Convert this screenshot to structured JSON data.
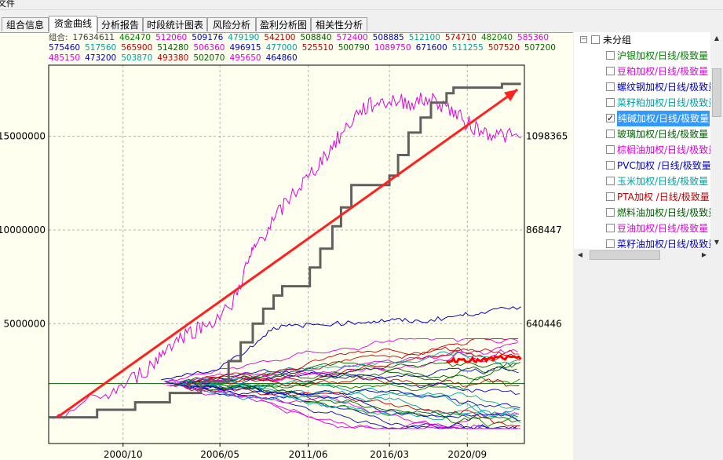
{
  "menu": {
    "file": "文件"
  },
  "tabs": [
    {
      "label": "组合信息",
      "active": false
    },
    {
      "label": "资金曲线",
      "active": true
    },
    {
      "label": "分析报告",
      "active": false
    },
    {
      "label": "时段统计图表",
      "active": false
    },
    {
      "label": "风险分析",
      "active": false
    },
    {
      "label": "盈利分析图",
      "active": false
    },
    {
      "label": "相关性分析",
      "active": false
    }
  ],
  "legend": {
    "lead_label": "组合:",
    "lead_value": "17634611",
    "rows": [
      [
        {
          "value": "462470",
          "color": "#008000"
        },
        {
          "value": "512060",
          "color": "#e000e0"
        },
        {
          "value": "509176",
          "color": "#0000c0"
        },
        {
          "value": "479190",
          "color": "#00a0a0"
        },
        {
          "value": "542100",
          "color": "#c00000"
        },
        {
          "value": "508840",
          "color": "#006000"
        },
        {
          "value": "572400",
          "color": "#e000e0"
        },
        {
          "value": "508885",
          "color": "#0000c0"
        },
        {
          "value": "512100",
          "color": "#00a0a0"
        },
        {
          "value": "574710",
          "color": "#c00000"
        },
        {
          "value": "482040",
          "color": "#008000"
        },
        {
          "value": "585360",
          "color": "#e000e0"
        }
      ],
      [
        {
          "value": "575460",
          "color": "#0000c0"
        },
        {
          "value": "517560",
          "color": "#00a0a0"
        },
        {
          "value": "565900",
          "color": "#c00000"
        },
        {
          "value": "514280",
          "color": "#006000"
        },
        {
          "value": "506360",
          "color": "#e000e0"
        },
        {
          "value": "496915",
          "color": "#0000c0"
        },
        {
          "value": "477000",
          "color": "#00a0a0"
        },
        {
          "value": "525510",
          "color": "#c00000"
        },
        {
          "value": "500790",
          "color": "#006000"
        },
        {
          "value": "1089750",
          "color": "#e000e0"
        },
        {
          "value": "671600",
          "color": "#0000c0"
        },
        {
          "value": "511255",
          "color": "#00a0a0"
        },
        {
          "value": "507520",
          "color": "#c00000"
        },
        {
          "value": "507200",
          "color": "#006000"
        }
      ],
      [
        {
          "value": "485150",
          "color": "#e000e0"
        },
        {
          "value": "473200",
          "color": "#0000c0"
        },
        {
          "value": "503870",
          "color": "#00a0a0"
        },
        {
          "value": "493380",
          "color": "#c00000"
        },
        {
          "value": "502070",
          "color": "#006000"
        },
        {
          "value": "495650",
          "color": "#e000e0"
        },
        {
          "value": "464860",
          "color": "#0000c0"
        }
      ]
    ]
  },
  "tree": {
    "group_label": "未分组",
    "group_expander": "−",
    "items": [
      {
        "label": "沪银加权/日线/极致量",
        "color": "#008000",
        "checked": false,
        "selected": false
      },
      {
        "label": "豆粕加权/日线/极致量",
        "color": "#e000e0",
        "checked": false,
        "selected": false
      },
      {
        "label": "螺纹钢加权/日线/极致量",
        "color": "#0000c0",
        "checked": false,
        "selected": false
      },
      {
        "label": "菜籽粕加权/日线/极致量",
        "color": "#00a0a0",
        "checked": false,
        "selected": false
      },
      {
        "label": "纯碱加权/日线/极致量",
        "color": "#c00000",
        "checked": true,
        "selected": true
      },
      {
        "label": "玻璃加权/日线/极致量",
        "color": "#006000",
        "checked": false,
        "selected": false
      },
      {
        "label": "棕榈油加权/日线/极致量",
        "color": "#e000e0",
        "checked": false,
        "selected": false
      },
      {
        "label": "PVC加权 /日线/极致量",
        "color": "#0000c0",
        "checked": false,
        "selected": false
      },
      {
        "label": "玉米加权/日线/极致量",
        "color": "#00a0a0",
        "checked": false,
        "selected": false
      },
      {
        "label": "PTA加权 /日线/极致量",
        "color": "#c00000",
        "checked": false,
        "selected": false
      },
      {
        "label": "燃料油加权/日线/极致量",
        "color": "#006000",
        "checked": false,
        "selected": false
      },
      {
        "label": "豆油加权/日线/极致量",
        "color": "#e000e0",
        "checked": false,
        "selected": false
      },
      {
        "label": "菜籽油加权/日线/极致量",
        "color": "#0000c0",
        "checked": false,
        "selected": false
      }
    ]
  },
  "chart_data": {
    "type": "line",
    "xlabel": "",
    "ylabel": "",
    "x_ticks": [
      "2000/10",
      "2006/05",
      "2011/06",
      "2016/03",
      "2020/09"
    ],
    "y_ticks_left": [
      {
        "label": "5000000",
        "value": 5000000
      },
      {
        "label": "10000000",
        "value": 10000000
      },
      {
        "label": "15000000",
        "value": 15000000
      }
    ],
    "y_ticks_right": [
      {
        "label": "640446",
        "value": 640446
      },
      {
        "label": "868447",
        "value": 868447
      },
      {
        "label": "1098365",
        "value": 1098365
      }
    ],
    "grid": true,
    "portfolio": {
      "color": "#606060",
      "t": [
        1996.5,
        1999.3,
        1999.3,
        2001.5,
        2001.5,
        2003.5,
        2003.5,
        2005.3,
        2005.3,
        2006.9,
        2006.9,
        2007.6,
        2007.6,
        2008.3,
        2008.3,
        2008.9,
        2008.9,
        2009.5,
        2009.5,
        2010.0,
        2010.0,
        2011.6,
        2011.6,
        2012.2,
        2012.2,
        2012.9,
        2012.9,
        2013.4,
        2013.4,
        2014.0,
        2014.0,
        2016.2,
        2016.2,
        2016.7,
        2016.7,
        2017.3,
        2017.3,
        2018.0,
        2018.0,
        2018.6,
        2018.6,
        2019.5,
        2019.5,
        2019.9,
        2019.9,
        2022.7,
        2022.7,
        2023.8
      ],
      "v": [
        0,
        0,
        400000,
        400000,
        800000,
        800000,
        1300000,
        1300000,
        1900000,
        1900000,
        3000000,
        3000000,
        4000000,
        4000000,
        5000000,
        5000000,
        5800000,
        5800000,
        6500000,
        6500000,
        7000000,
        7000000,
        8000000,
        8000000,
        9000000,
        9000000,
        10200000,
        10200000,
        11200000,
        11200000,
        12400000,
        12400000,
        12900000,
        12900000,
        14000000,
        14000000,
        15200000,
        15200000,
        16000000,
        16000000,
        16800000,
        16800000,
        17300000,
        17300000,
        17600000,
        17600000,
        17800000,
        17800000
      ]
    },
    "max_series": {
      "color": "#e000e0",
      "t": [
        1996.5,
        1999.5,
        2001.0,
        2002.5,
        2003.5,
        2004.5,
        2005.5,
        2007.0,
        2008.0,
        2008.5,
        2009.5,
        2010.5,
        2011.5,
        2012.5,
        2013.5,
        2014.5,
        2015.5,
        2016.5,
        2017.5,
        2018.5,
        2019.5,
        2020.5,
        2021.5,
        2022.5,
        2023.8
      ],
      "v": [
        0,
        1000000,
        1800000,
        2800000,
        3900000,
        4500000,
        4900000,
        5800000,
        8200000,
        9200000,
        10500000,
        11800000,
        12800000,
        14000000,
        15200000,
        16400000,
        16800000,
        16900000,
        16800000,
        17000000,
        16600000,
        15800000,
        15300000,
        15100000,
        14900000
      ]
    },
    "max_series_labels": "1089750",
    "bundle_colors": [
      "#008000",
      "#e000e0",
      "#0000c0",
      "#00a0a0",
      "#c00000",
      "#006000",
      "#e000e0",
      "#0000c0",
      "#00a0a0",
      "#c00000",
      "#008000",
      "#e000e0",
      "#0000c0",
      "#00a0a0",
      "#c00000",
      "#006000",
      "#e000e0",
      "#0000c0",
      "#00a0a0",
      "#c00000",
      "#006000",
      "#e000e0",
      "#0000c0",
      "#00a0a0",
      "#c00000",
      "#006000",
      "#e000e0",
      "#0000c0"
    ],
    "top_blue_series": {
      "color": "#0000c0",
      "t": [
        2003.0,
        2006.0,
        2008.0,
        2009.5,
        2011.0,
        2013.0,
        2015.0,
        2016.5,
        2018.0,
        2020.0,
        2021.5,
        2023.8
      ],
      "v": [
        2000000,
        2500000,
        3600000,
        4800000,
        4900000,
        5000000,
        5100000,
        5200000,
        5100000,
        5400000,
        5600000,
        5900000
      ]
    },
    "soda_series": {
      "color": "#ff0000",
      "t": [
        2019.5,
        2020.5,
        2021.5,
        2022.5,
        2023.8
      ],
      "v": [
        3000000,
        3100000,
        3000000,
        3200000,
        3100000
      ]
    },
    "trend_arrow": {
      "color": "#ff2020",
      "t0": 1997.0,
      "v0": 0,
      "t1": 2023.6,
      "v1": 17500000
    },
    "baseline": {
      "color": "#006000",
      "value": 1800000
    }
  }
}
